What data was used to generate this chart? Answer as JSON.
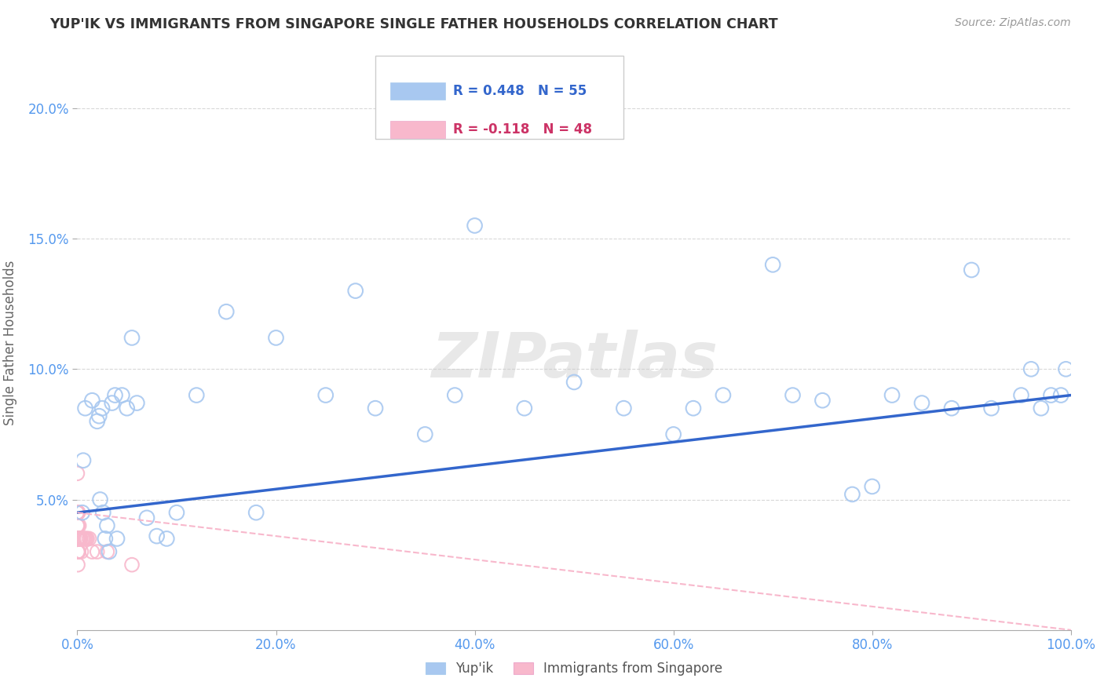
{
  "title": "YUP'IK VS IMMIGRANTS FROM SINGAPORE SINGLE FATHER HOUSEHOLDS CORRELATION CHART",
  "source": "Source: ZipAtlas.com",
  "ylabel": "Single Father Households",
  "background_color": "#ffffff",
  "grid_color": "#d8d8d8",
  "watermark": "ZIPatlas",
  "legend": {
    "series1_label": "Yup'ik",
    "series2_label": "Immigrants from Singapore",
    "R1": 0.448,
    "N1": 55,
    "R2": -0.118,
    "N2": 48,
    "color1": "#a8c8f0",
    "color2": "#f8b8cc"
  },
  "yup_ik_x": [
    0.5,
    0.6,
    0.8,
    1.5,
    2.0,
    2.2,
    2.3,
    2.5,
    2.6,
    2.8,
    3.0,
    3.2,
    3.5,
    3.8,
    4.0,
    4.5,
    5.0,
    5.5,
    6.0,
    7.0,
    8.0,
    9.0,
    10.0,
    12.0,
    15.0,
    18.0,
    20.0,
    25.0,
    28.0,
    30.0,
    35.0,
    38.0,
    40.0,
    45.0,
    50.0,
    55.0,
    60.0,
    62.0,
    65.0,
    70.0,
    72.0,
    75.0,
    78.0,
    80.0,
    82.0,
    85.0,
    88.0,
    90.0,
    92.0,
    95.0,
    96.0,
    97.0,
    98.0,
    99.0,
    99.5
  ],
  "yup_ik_y": [
    4.5,
    6.5,
    8.5,
    8.8,
    8.0,
    8.2,
    5.0,
    8.5,
    4.5,
    3.5,
    4.0,
    3.0,
    8.7,
    9.0,
    3.5,
    9.0,
    8.5,
    11.2,
    8.7,
    4.3,
    3.6,
    3.5,
    4.5,
    9.0,
    12.2,
    4.5,
    11.2,
    9.0,
    13.0,
    8.5,
    7.5,
    9.0,
    15.5,
    8.5,
    9.5,
    8.5,
    7.5,
    8.5,
    9.0,
    14.0,
    9.0,
    8.8,
    5.2,
    5.5,
    9.0,
    8.7,
    8.5,
    13.8,
    8.5,
    9.0,
    10.0,
    8.5,
    9.0,
    9.0,
    10.0
  ],
  "singapore_x": [
    0.0,
    0.0,
    0.0,
    0.0,
    0.0,
    0.01,
    0.02,
    0.02,
    0.03,
    0.03,
    0.04,
    0.04,
    0.05,
    0.05,
    0.06,
    0.06,
    0.07,
    0.08,
    0.08,
    0.09,
    0.1,
    0.1,
    0.11,
    0.12,
    0.13,
    0.14,
    0.15,
    0.16,
    0.17,
    0.18,
    0.2,
    0.22,
    0.25,
    0.28,
    0.3,
    0.35,
    0.4,
    0.5,
    0.6,
    0.7,
    0.8,
    0.9,
    1.0,
    1.2,
    1.5,
    2.0,
    3.0,
    5.5
  ],
  "singapore_y": [
    6.0,
    4.5,
    4.5,
    4.0,
    3.5,
    3.5,
    3.5,
    4.5,
    3.5,
    4.0,
    3.5,
    3.0,
    2.5,
    4.0,
    3.5,
    3.0,
    4.5,
    3.5,
    3.0,
    3.5,
    3.5,
    4.5,
    3.5,
    3.5,
    3.0,
    3.5,
    3.5,
    3.5,
    3.5,
    4.0,
    3.5,
    3.5,
    3.5,
    3.5,
    3.5,
    3.5,
    3.0,
    3.5,
    3.5,
    3.5,
    3.5,
    3.5,
    3.5,
    3.5,
    3.0,
    3.0,
    3.0,
    2.5
  ],
  "xlim": [
    0,
    100
  ],
  "ylim": [
    0,
    22
  ],
  "ytick_vals": [
    5.0,
    10.0,
    15.0,
    20.0
  ],
  "ytick_labels": [
    "5.0%",
    "10.0%",
    "15.0%",
    "20.0%"
  ],
  "xtick_vals": [
    0,
    20,
    40,
    60,
    80,
    100
  ],
  "xtick_labels": [
    "0.0%",
    "20.0%",
    "40.0%",
    "60.0%",
    "80.0%",
    "100.0%"
  ],
  "trend_blue_x0": 0,
  "trend_blue_y0": 4.5,
  "trend_blue_x1": 100,
  "trend_blue_y1": 9.0,
  "trend_pink_x0": 0,
  "trend_pink_y0": 4.5,
  "trend_pink_x1": 100,
  "trend_pink_y1": 0.0
}
